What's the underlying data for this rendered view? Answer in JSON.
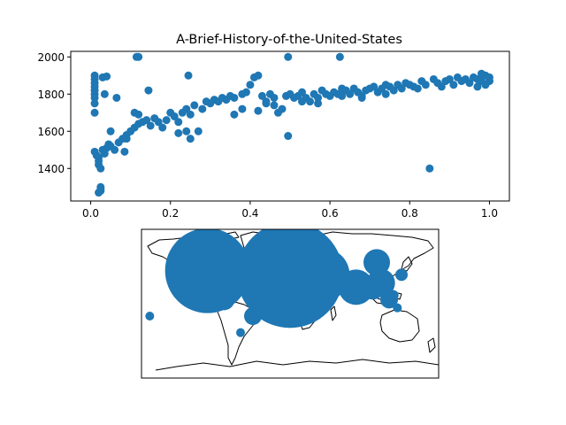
{
  "chart_data": [
    {
      "type": "scatter",
      "title": "A-Brief-History-of-the-United-States",
      "xlabel": "",
      "ylabel": "",
      "xlim": [
        -0.05,
        1.05
      ],
      "ylim": [
        1225,
        2030
      ],
      "x_ticks": [
        0.0,
        0.2,
        0.4,
        0.6,
        0.8,
        1.0
      ],
      "x_tick_labels": [
        "0.0",
        "0.2",
        "0.4",
        "0.6",
        "0.8",
        "1.0"
      ],
      "y_ticks": [
        1400,
        1600,
        1800,
        2000
      ],
      "y_tick_labels": [
        "1400",
        "1600",
        "1800",
        "2000"
      ],
      "marker_color": "#1f77b4",
      "points": [
        [
          0.01,
          1900
        ],
        [
          0.01,
          1880
        ],
        [
          0.01,
          1860
        ],
        [
          0.01,
          1840
        ],
        [
          0.01,
          1820
        ],
        [
          0.01,
          1800
        ],
        [
          0.01,
          1780
        ],
        [
          0.01,
          1750
        ],
        [
          0.01,
          1700
        ],
        [
          0.01,
          1490
        ],
        [
          0.015,
          1470
        ],
        [
          0.02,
          1460
        ],
        [
          0.02,
          1440
        ],
        [
          0.02,
          1420
        ],
        [
          0.025,
          1400
        ],
        [
          0.025,
          1300
        ],
        [
          0.025,
          1290
        ],
        [
          0.025,
          1280
        ],
        [
          0.02,
          1270
        ],
        [
          0.03,
          1500
        ],
        [
          0.035,
          1480
        ],
        [
          0.04,
          1510
        ],
        [
          0.045,
          1530
        ],
        [
          0.05,
          1520
        ],
        [
          0.06,
          1500
        ],
        [
          0.05,
          1600
        ],
        [
          0.03,
          1890
        ],
        [
          0.04,
          1895
        ],
        [
          0.035,
          1800
        ],
        [
          0.065,
          1780
        ],
        [
          0.07,
          1540
        ],
        [
          0.08,
          1560
        ],
        [
          0.09,
          1580
        ],
        [
          0.1,
          1600
        ],
        [
          0.11,
          1620
        ],
        [
          0.12,
          1640
        ],
        [
          0.13,
          1650
        ],
        [
          0.11,
          1700
        ],
        [
          0.12,
          1690
        ],
        [
          0.09,
          1560
        ],
        [
          0.085,
          1490
        ],
        [
          0.115,
          2000
        ],
        [
          0.12,
          2000
        ],
        [
          0.145,
          1820
        ],
        [
          0.14,
          1660
        ],
        [
          0.15,
          1630
        ],
        [
          0.16,
          1670
        ],
        [
          0.17,
          1650
        ],
        [
          0.18,
          1620
        ],
        [
          0.19,
          1660
        ],
        [
          0.2,
          1700
        ],
        [
          0.21,
          1680
        ],
        [
          0.22,
          1650
        ],
        [
          0.23,
          1700
        ],
        [
          0.24,
          1720
        ],
        [
          0.25,
          1690
        ],
        [
          0.26,
          1740
        ],
        [
          0.22,
          1590
        ],
        [
          0.24,
          1600
        ],
        [
          0.25,
          1560
        ],
        [
          0.27,
          1600
        ],
        [
          0.245,
          1900
        ],
        [
          0.28,
          1720
        ],
        [
          0.29,
          1760
        ],
        [
          0.3,
          1750
        ],
        [
          0.31,
          1770
        ],
        [
          0.32,
          1760
        ],
        [
          0.33,
          1780
        ],
        [
          0.34,
          1770
        ],
        [
          0.35,
          1790
        ],
        [
          0.36,
          1780
        ],
        [
          0.38,
          1800
        ],
        [
          0.39,
          1810
        ],
        [
          0.4,
          1850
        ],
        [
          0.41,
          1890
        ],
        [
          0.42,
          1900
        ],
        [
          0.43,
          1790
        ],
        [
          0.44,
          1760
        ],
        [
          0.45,
          1800
        ],
        [
          0.46,
          1780
        ],
        [
          0.47,
          1700
        ],
        [
          0.48,
          1720
        ],
        [
          0.49,
          1790
        ],
        [
          0.5,
          1800
        ],
        [
          0.495,
          1575
        ],
        [
          0.495,
          2000
        ],
        [
          0.51,
          1780
        ],
        [
          0.52,
          1790
        ],
        [
          0.53,
          1810
        ],
        [
          0.54,
          1780
        ],
        [
          0.55,
          1760
        ],
        [
          0.56,
          1800
        ],
        [
          0.57,
          1780
        ],
        [
          0.58,
          1820
        ],
        [
          0.59,
          1800
        ],
        [
          0.6,
          1790
        ],
        [
          0.61,
          1810
        ],
        [
          0.62,
          1800
        ],
        [
          0.625,
          2000
        ],
        [
          0.63,
          1830
        ],
        [
          0.64,
          1820
        ],
        [
          0.65,
          1800
        ],
        [
          0.66,
          1830
        ],
        [
          0.67,
          1810
        ],
        [
          0.68,
          1790
        ],
        [
          0.69,
          1820
        ],
        [
          0.7,
          1830
        ],
        [
          0.71,
          1840
        ],
        [
          0.72,
          1810
        ],
        [
          0.73,
          1830
        ],
        [
          0.74,
          1850
        ],
        [
          0.75,
          1840
        ],
        [
          0.76,
          1820
        ],
        [
          0.77,
          1850
        ],
        [
          0.78,
          1830
        ],
        [
          0.79,
          1860
        ],
        [
          0.8,
          1850
        ],
        [
          0.81,
          1840
        ],
        [
          0.82,
          1830
        ],
        [
          0.83,
          1870
        ],
        [
          0.84,
          1850
        ],
        [
          0.85,
          1400
        ],
        [
          0.86,
          1880
        ],
        [
          0.87,
          1860
        ],
        [
          0.88,
          1840
        ],
        [
          0.89,
          1870
        ],
        [
          0.9,
          1880
        ],
        [
          0.91,
          1850
        ],
        [
          0.92,
          1890
        ],
        [
          0.93,
          1870
        ],
        [
          0.94,
          1880
        ],
        [
          0.95,
          1860
        ],
        [
          0.96,
          1890
        ],
        [
          0.97,
          1880
        ],
        [
          0.98,
          1870
        ],
        [
          0.99,
          1900
        ],
        [
          1.0,
          1890
        ],
        [
          1.0,
          1870
        ],
        [
          0.99,
          1850
        ],
        [
          0.98,
          1910
        ],
        [
          0.97,
          1840
        ],
        [
          0.36,
          1690
        ],
        [
          0.38,
          1720
        ],
        [
          0.42,
          1710
        ],
        [
          0.44,
          1750
        ],
        [
          0.46,
          1740
        ],
        [
          0.53,
          1760
        ],
        [
          0.57,
          1750
        ],
        [
          0.63,
          1790
        ],
        [
          0.68,
          1780
        ],
        [
          0.74,
          1800
        ]
      ]
    },
    {
      "type": "bubble-map",
      "projection": "plate-carree",
      "xlim": [
        -180,
        180
      ],
      "ylim": [
        -90,
        90
      ],
      "marker_color": "#1f77b4",
      "points": [
        {
          "lon": -100,
          "lat": 40,
          "size": 48
        },
        {
          "lon": -80,
          "lat": 5,
          "size": 12
        },
        {
          "lon": -45,
          "lat": -15,
          "size": 10
        },
        {
          "lon": -60,
          "lat": -35,
          "size": 5
        },
        {
          "lon": -170,
          "lat": -15,
          "size": 5
        },
        {
          "lon": -50,
          "lat": 60,
          "size": 8
        },
        {
          "lon": -10,
          "lat": 65,
          "size": 6
        },
        {
          "lon": 0,
          "lat": 35,
          "size": 60
        },
        {
          "lon": 40,
          "lat": 35,
          "size": 30
        },
        {
          "lon": 80,
          "lat": 20,
          "size": 20
        },
        {
          "lon": 105,
          "lat": 50,
          "size": 15
        },
        {
          "lon": 100,
          "lat": 20,
          "size": 14
        },
        {
          "lon": 110,
          "lat": 25,
          "size": 16
        },
        {
          "lon": 120,
          "lat": 5,
          "size": 10
        },
        {
          "lon": 125,
          "lat": 10,
          "size": 6
        },
        {
          "lon": 135,
          "lat": 35,
          "size": 7
        },
        {
          "lon": 130,
          "lat": -5,
          "size": 5
        }
      ]
    }
  ]
}
